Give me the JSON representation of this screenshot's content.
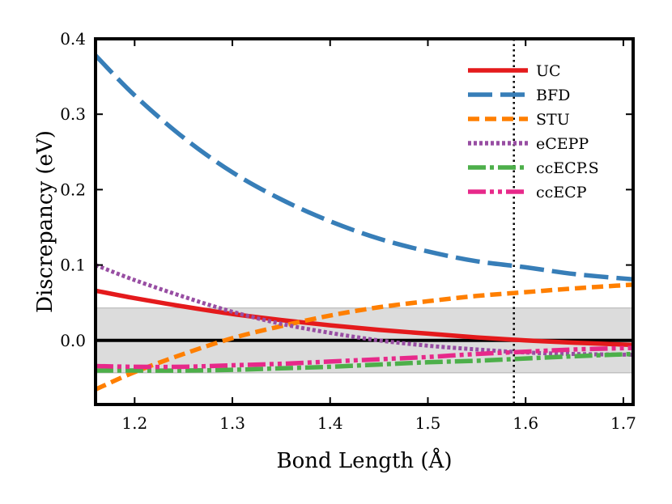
{
  "chart_data": {
    "type": "line",
    "title": "",
    "xlabel": "Bond Length (Å)",
    "ylabel": "Discrepancy (eV)",
    "xlim": [
      1.16,
      1.71
    ],
    "ylim": [
      -0.085,
      0.4
    ],
    "xticks": [
      1.2,
      1.3,
      1.4,
      1.5,
      1.6,
      1.7
    ],
    "xtick_labels": [
      "1.2",
      "1.3",
      "1.4",
      "1.5",
      "1.6",
      "1.7"
    ],
    "yticks": [
      0.0,
      0.1,
      0.2,
      0.3,
      0.4
    ],
    "ytick_labels": [
      "0.0",
      "0.1",
      "0.2",
      "0.3",
      "0.4"
    ],
    "grid": false,
    "legend_position": "top-right",
    "band": {
      "y_min": -0.043,
      "y_max": 0.043,
      "color": "#dcdcdc"
    },
    "reference_line": {
      "y": 0.0,
      "color": "#000000"
    },
    "vertical_line": {
      "x": 1.588,
      "style": "dotted",
      "color": "#000000"
    },
    "x": [
      1.16,
      1.2,
      1.25,
      1.3,
      1.35,
      1.4,
      1.45,
      1.5,
      1.55,
      1.6,
      1.65,
      1.71
    ],
    "series": [
      {
        "name": "UC",
        "color": "#e41a1c",
        "dash": "solid",
        "values": [
          0.066,
          0.056,
          0.045,
          0.035,
          0.027,
          0.02,
          0.014,
          0.009,
          0.004,
          0.0,
          -0.003,
          -0.006
        ]
      },
      {
        "name": "BFD",
        "color": "#377eb8",
        "dash": "long-dash",
        "values": [
          0.378,
          0.325,
          0.269,
          0.223,
          0.187,
          0.158,
          0.135,
          0.118,
          0.105,
          0.097,
          0.088,
          0.081
        ]
      },
      {
        "name": "STU",
        "color": "#ff7f00",
        "dash": "dash",
        "values": [
          -0.065,
          -0.042,
          -0.018,
          0.003,
          0.019,
          0.033,
          0.044,
          0.052,
          0.059,
          0.064,
          0.069,
          0.074
        ]
      },
      {
        "name": "eCEPP",
        "color": "#984ea3",
        "dash": "dot",
        "values": [
          0.1,
          0.08,
          0.058,
          0.038,
          0.022,
          0.01,
          0.0,
          -0.007,
          -0.012,
          -0.016,
          -0.018,
          -0.019
        ]
      },
      {
        "name": "ccECP.S",
        "color": "#4daf4a",
        "dash": "dash-dot",
        "values": [
          -0.04,
          -0.04,
          -0.04,
          -0.039,
          -0.037,
          -0.035,
          -0.032,
          -0.029,
          -0.027,
          -0.024,
          -0.021,
          -0.018
        ]
      },
      {
        "name": "ccECP",
        "color": "#e7298a",
        "dash": "dash-dot-dot",
        "values": [
          -0.034,
          -0.035,
          -0.035,
          -0.033,
          -0.031,
          -0.028,
          -0.025,
          -0.022,
          -0.018,
          -0.015,
          -0.012,
          -0.01
        ]
      }
    ]
  }
}
